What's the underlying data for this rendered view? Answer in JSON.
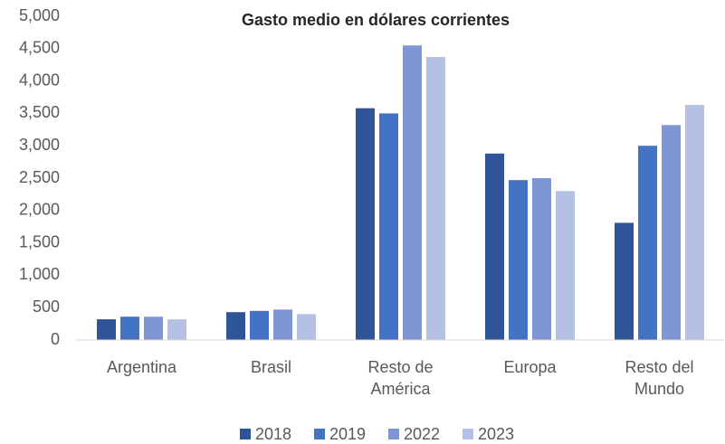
{
  "chart_data": {
    "type": "bar",
    "title": "Gasto medio en dólares corrientes",
    "categories": [
      "Argentina",
      "Brasil",
      "Resto de América",
      "Europa",
      "Resto del Mundo"
    ],
    "series": [
      {
        "name": "2018",
        "color": "#2f5597",
        "values": [
          320,
          430,
          3580,
          2880,
          1810
        ]
      },
      {
        "name": "2019",
        "color": "#4472c4",
        "values": [
          360,
          450,
          3500,
          2470,
          3000
        ]
      },
      {
        "name": "2022",
        "color": "#7f96d4",
        "values": [
          360,
          470,
          4550,
          2500,
          3320
        ]
      },
      {
        "name": "2023",
        "color": "#b4c0e4",
        "values": [
          320,
          400,
          4370,
          2300,
          3630
        ]
      }
    ],
    "ylim": [
      0,
      5000
    ],
    "yticks": [
      0,
      500,
      {
        "value": 1000,
        "label": "1,000"
      },
      {
        "value": 1500,
        "label": "1,500"
      },
      {
        "value": 2000,
        "label": "2,000"
      },
      {
        "value": 2500,
        "label": "2,500"
      },
      {
        "value": 3000,
        "label": "3,000"
      },
      {
        "value": 3500,
        "label": "3,500"
      },
      {
        "value": 4000,
        "label": "4,000"
      },
      {
        "value": 4500,
        "label": "4,500"
      },
      {
        "value": 5000,
        "label": "5,000"
      }
    ],
    "grid": false,
    "legend": "bottom"
  }
}
